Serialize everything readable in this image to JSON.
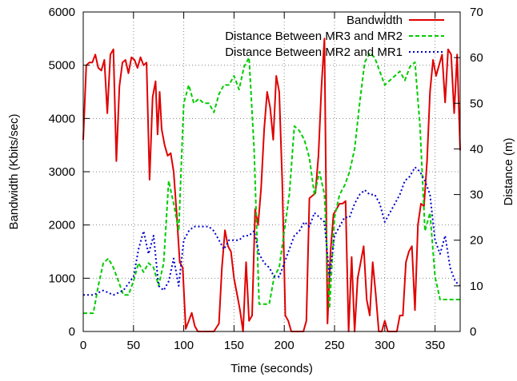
{
  "chart_data": {
    "type": "line",
    "title": "",
    "xlabel": "Time (seconds)",
    "ylabel": "Bandwidth (Kbits/sec)",
    "y2label": "Distance (m)",
    "xlim": [
      0,
      375
    ],
    "ylim": [
      0,
      6000
    ],
    "y2lim": [
      0,
      70
    ],
    "xticks": [
      0,
      50,
      100,
      150,
      200,
      250,
      300,
      350
    ],
    "yticks": [
      0,
      1000,
      2000,
      3000,
      4000,
      5000,
      6000
    ],
    "y2ticks": [
      0,
      10,
      20,
      30,
      40,
      50,
      60,
      70
    ],
    "grid": true,
    "legend_position": "top-right",
    "series": [
      {
        "name": "Bandwidth",
        "axis": "left",
        "color": "#e00000",
        "style": "solid",
        "x": [
          0,
          3,
          6,
          9,
          12,
          15,
          18,
          21,
          24,
          27,
          30,
          33,
          36,
          39,
          42,
          45,
          48,
          51,
          54,
          57,
          60,
          63,
          66,
          69,
          72,
          74,
          76,
          78,
          81,
          84,
          87,
          90,
          93,
          96,
          99,
          102,
          105,
          108,
          111,
          114,
          117,
          120,
          125,
          130,
          135,
          138,
          141,
          144,
          147,
          150,
          153,
          156,
          159,
          162,
          165,
          168,
          171,
          174,
          177,
          180,
          183,
          186,
          189,
          192,
          195,
          198,
          201,
          204,
          207,
          210,
          213,
          216,
          219,
          222,
          225,
          228,
          231,
          234,
          237,
          240,
          243,
          246,
          249,
          252,
          255,
          258,
          261,
          264,
          267,
          270,
          273,
          276,
          279,
          282,
          285,
          288,
          291,
          294,
          297,
          300,
          303,
          306,
          309,
          312,
          315,
          318,
          321,
          324,
          327,
          330,
          333,
          336,
          339,
          342,
          345,
          348,
          351,
          354,
          357,
          360,
          363,
          366,
          369,
          372,
          375
        ],
        "values": [
          3600,
          5000,
          5050,
          5050,
          5200,
          4950,
          4900,
          5100,
          4100,
          5200,
          5300,
          3200,
          4600,
          5050,
          5100,
          4850,
          5150,
          5100,
          4950,
          5150,
          5000,
          5050,
          2850,
          4400,
          4700,
          3700,
          4500,
          3800,
          3500,
          3300,
          3350,
          3000,
          2200,
          1300,
          1200,
          50,
          200,
          350,
          100,
          0,
          0,
          0,
          0,
          0,
          150,
          1200,
          1900,
          1600,
          1500,
          1000,
          700,
          400,
          0,
          1300,
          200,
          300,
          2300,
          2000,
          2700,
          3800,
          4500,
          4200,
          3600,
          4800,
          4500,
          2800,
          300,
          200,
          0,
          0,
          0,
          0,
          0,
          200,
          2500,
          2550,
          2600,
          3300,
          4600,
          5500,
          150,
          1500,
          2200,
          2300,
          2400,
          2400,
          2450,
          0,
          1400,
          0,
          1000,
          1300,
          1600,
          600,
          300,
          1300,
          700,
          0,
          0,
          200,
          0,
          0,
          0,
          0,
          300,
          300,
          1300,
          1500,
          1600,
          400,
          2000,
          2400,
          2350,
          3200,
          4500,
          5100,
          4800,
          5000,
          5200,
          4300,
          5300,
          5200,
          4100,
          5200,
          3400
        ]
      },
      {
        "name": "Distance Between MR3 and MR2",
        "axis": "right",
        "color": "#00cc00",
        "style": "dashed",
        "x": [
          0,
          5,
          10,
          15,
          20,
          25,
          30,
          35,
          40,
          45,
          50,
          55,
          60,
          65,
          70,
          75,
          80,
          85,
          90,
          95,
          100,
          105,
          110,
          115,
          120,
          125,
          130,
          135,
          140,
          145,
          150,
          155,
          160,
          165,
          170,
          175,
          180,
          185,
          190,
          195,
          200,
          205,
          210,
          215,
          220,
          225,
          230,
          235,
          240,
          245,
          250,
          255,
          260,
          265,
          270,
          275,
          280,
          285,
          290,
          295,
          300,
          305,
          310,
          315,
          320,
          325,
          330,
          335,
          340,
          345,
          350,
          355,
          360,
          365,
          370,
          375
        ],
        "values": [
          4,
          4,
          4,
          10,
          15,
          16,
          14,
          11,
          8,
          8,
          11,
          15,
          13,
          15,
          14,
          10,
          15,
          33,
          28,
          22,
          50,
          54,
          50,
          51,
          50,
          50,
          48,
          52,
          54,
          54,
          56,
          53,
          58,
          60,
          40,
          6,
          6,
          6,
          12,
          14,
          22,
          30,
          45,
          44,
          42,
          38,
          30,
          35,
          30,
          5,
          25,
          30,
          32,
          35,
          40,
          50,
          59,
          61,
          60,
          57,
          54,
          55,
          56,
          57,
          55,
          58,
          59,
          45,
          22,
          26,
          12,
          7,
          7,
          7,
          7,
          7
        ]
      },
      {
        "name": "Distance Between MR2 and MR1",
        "axis": "right",
        "color": "#0000cc",
        "style": "dotted",
        "x": [
          0,
          10,
          20,
          30,
          40,
          50,
          55,
          60,
          65,
          70,
          75,
          80,
          85,
          90,
          95,
          100,
          105,
          110,
          115,
          120,
          125,
          130,
          135,
          140,
          145,
          150,
          155,
          160,
          165,
          170,
          175,
          180,
          185,
          190,
          195,
          200,
          205,
          210,
          215,
          220,
          225,
          230,
          235,
          240,
          245,
          250,
          255,
          260,
          265,
          270,
          275,
          280,
          285,
          290,
          295,
          300,
          305,
          310,
          315,
          320,
          325,
          330,
          335,
          340,
          345,
          350,
          355,
          360,
          365,
          370,
          375
        ],
        "values": [
          8,
          8,
          9,
          8,
          9,
          12,
          18,
          22,
          17,
          21,
          10,
          9,
          11,
          16,
          10,
          20,
          22,
          23,
          23,
          23,
          23,
          22,
          20,
          18,
          20,
          20,
          20,
          21,
          21,
          22,
          17,
          15,
          14,
          12,
          12,
          15,
          18,
          21,
          22,
          24,
          23,
          26,
          25,
          24,
          12,
          21,
          23,
          25,
          25,
          28,
          30,
          31,
          30,
          30,
          28,
          24,
          26,
          28,
          30,
          33,
          34,
          36,
          35,
          33,
          30,
          20,
          17,
          21,
          14,
          11,
          10
        ]
      }
    ]
  }
}
